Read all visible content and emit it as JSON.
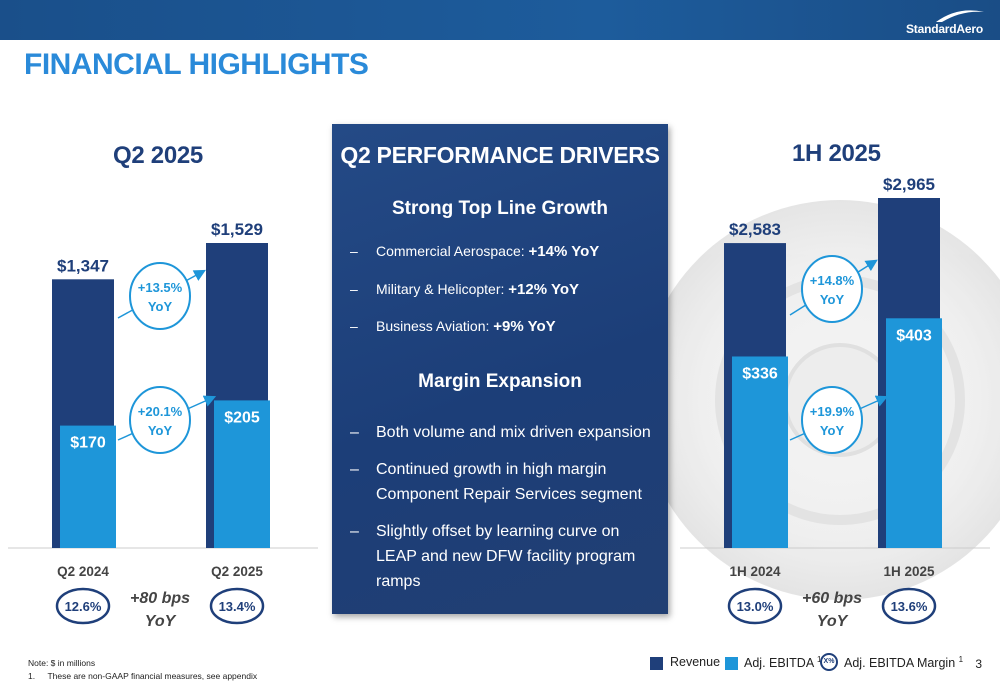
{
  "header": {
    "brand": "StandardAero",
    "title": "FINANCIAL HIGHLIGHTS",
    "page_number": "3"
  },
  "colors": {
    "revenue": "#1f3f7a",
    "ebitda": "#1e96d9",
    "accent": "#2a8ad9",
    "panel": "#1f4278"
  },
  "left": {
    "heading": "Q2 2025",
    "margin_change": "+80 bps YoY",
    "margin_change_line1": "+80 bps",
    "margin_change_line2": "YoY",
    "revenue_yoy_line1": "+13.5%",
    "revenue_yoy_line2": "YoY",
    "ebitda_yoy_line1": "+20.1%",
    "ebitda_yoy_line2": "YoY"
  },
  "right": {
    "heading": "1H 2025",
    "margin_change_line1": "+60 bps",
    "margin_change_line2": "YoY",
    "revenue_yoy_line1": "+14.8%",
    "revenue_yoy_line2": "YoY",
    "ebitda_yoy_line1": "+19.9%",
    "ebitda_yoy_line2": "YoY"
  },
  "drivers": {
    "title": "Q2 PERFORMANCE DRIVERS",
    "growth_title": "Strong Top Line Growth",
    "growth_items": [
      {
        "label": "Commercial Aerospace: ",
        "value": "+14% YoY"
      },
      {
        "label": "Military & Helicopter: ",
        "value": "+12% YoY"
      },
      {
        "label": "Business Aviation: ",
        "value": "+9% YoY"
      }
    ],
    "margin_title": "Margin Expansion",
    "margin_items": [
      "Both volume and mix driven expansion",
      "Continued growth in high margin Component Repair Services segment",
      "Slightly offset by learning curve on LEAP and new DFW facility program ramps"
    ],
    "dash": "–"
  },
  "legend": {
    "revenue": "Revenue",
    "ebitda": "Adj. EBITDA",
    "ebitda_sup": "1",
    "margin_badge": "X%",
    "margin": "Adj. EBITDA Margin",
    "margin_sup": "1"
  },
  "footer": {
    "note": "Note: $ in millions",
    "footnote_num": "1.",
    "footnote": "These are non-GAAP financial measures, see appendix"
  },
  "chart_data": [
    {
      "type": "bar",
      "title": "Q2 2025",
      "categories": [
        "Q2 2024",
        "Q2 2025"
      ],
      "series": [
        {
          "name": "Revenue",
          "values": [
            1347,
            1529
          ],
          "labels": [
            "$1,347",
            "$1,529"
          ]
        },
        {
          "name": "Adj. EBITDA",
          "values": [
            170,
            205
          ],
          "labels": [
            "$170",
            "$205"
          ]
        }
      ],
      "margins": [
        "12.6%",
        "13.4%"
      ],
      "ylim": [
        0,
        1529
      ]
    },
    {
      "type": "bar",
      "title": "1H 2025",
      "categories": [
        "1H 2024",
        "1H 2025"
      ],
      "series": [
        {
          "name": "Revenue",
          "values": [
            2583,
            2965
          ],
          "labels": [
            "$2,583",
            "$2,965"
          ]
        },
        {
          "name": "Adj. EBITDA",
          "values": [
            336,
            403
          ],
          "labels": [
            "$336",
            "$403"
          ]
        }
      ],
      "margins": [
        "13.0%",
        "13.6%"
      ],
      "ylim": [
        0,
        2965
      ]
    }
  ]
}
